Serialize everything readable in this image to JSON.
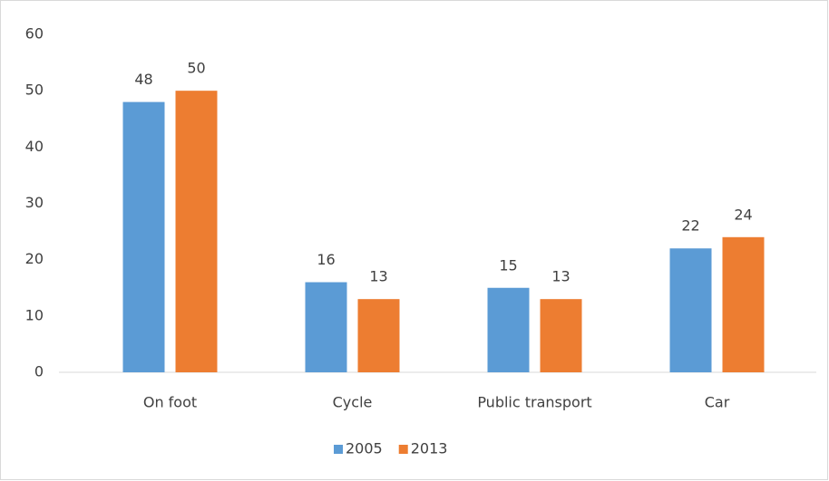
{
  "chart_data": {
    "type": "bar",
    "categories": [
      "On foot",
      "Cycle",
      "Public transport",
      "Car"
    ],
    "series": [
      {
        "name": "2005",
        "color": "#5b9bd5",
        "values": [
          48,
          16,
          15,
          22
        ]
      },
      {
        "name": "2013",
        "color": "#ed7d31",
        "values": [
          50,
          13,
          13,
          24
        ]
      }
    ],
    "ylim": [
      0,
      60
    ],
    "yticks": [
      0,
      10,
      20,
      30,
      40,
      50,
      60
    ],
    "grid": false,
    "legend": "bottom"
  }
}
